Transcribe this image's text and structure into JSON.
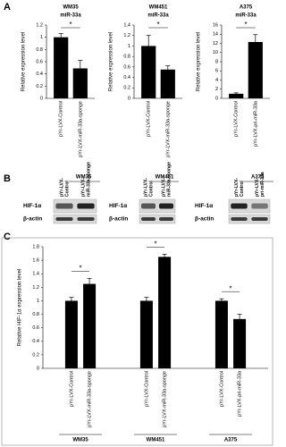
{
  "panel_labels": [
    "A",
    "B",
    "C"
  ],
  "chart_data": [
    {
      "type": "bar",
      "title": "WM35",
      "subtitle": "miR-33a",
      "y_label": "Relative expression level",
      "categories": [
        "pYr-LVX-Control",
        "pYr-LVX-miR-33a-sponge"
      ],
      "values": [
        1.0,
        0.49
      ],
      "errors": [
        0.06,
        0.13
      ],
      "color": "#000000",
      "ylim": [
        0,
        1.2
      ],
      "yticks": [
        0,
        0.2,
        0.4,
        0.6,
        0.8,
        1,
        1.2
      ],
      "annotations": [
        "*"
      ]
    },
    {
      "type": "bar",
      "title": "WM451",
      "subtitle": "miR-33a",
      "y_label": "Relative expression level",
      "categories": [
        "pYr-LVX-Control",
        "pYr-LVX-miR-33a-sponge"
      ],
      "values": [
        1.0,
        0.55
      ],
      "errors": [
        0.2,
        0.07
      ],
      "color": "#000000",
      "ylim": [
        0,
        1.4
      ],
      "yticks": [
        0,
        0.2,
        0.4,
        0.6,
        0.8,
        1,
        1.2,
        1.4
      ],
      "annotations": [
        "*"
      ]
    },
    {
      "type": "bar",
      "title": "A375",
      "subtitle": "miR-33a",
      "y_label": "Relative expression level",
      "categories": [
        "pYr-LVX-Control",
        "pYr-LVX-pri-miR-33a"
      ],
      "values": [
        1.0,
        12.3
      ],
      "errors": [
        0.2,
        1.6
      ],
      "color": "#000000",
      "ylim": [
        0,
        16
      ],
      "yticks": [
        0,
        2,
        4,
        6,
        8,
        10,
        12,
        14,
        16
      ],
      "annotations": [
        "*"
      ]
    },
    {
      "type": "bar",
      "y_label": "Relative HIF-1α expression level",
      "categories": [
        "pYr-LVX-Control",
        "pYr-LVX-miR-33a-sponge",
        "pYr-LVX-Control",
        "pYr-LVX-miR-33a-sponge",
        "pYr-LVX-Control",
        "pYr-LVX-pri-miR-33a"
      ],
      "groups": [
        "WM35",
        "WM451",
        "A375"
      ],
      "values": [
        1.0,
        1.25,
        1.0,
        1.65,
        1.0,
        0.73
      ],
      "errors": [
        0.05,
        0.08,
        0.05,
        0.04,
        0.03,
        0.07
      ],
      "color": "#000000",
      "ylim": [
        0,
        1.8
      ],
      "yticks": [
        0,
        0.2,
        0.4,
        0.6,
        0.8,
        1,
        1.2,
        1.4,
        1.6,
        1.8
      ],
      "annotations": [
        "*",
        "*",
        "*"
      ]
    }
  ],
  "blots": [
    {
      "cell_line": "WM35",
      "lanes": [
        [
          "pYr-LVX-",
          "Control"
        ],
        [
          "pYr-LVX-",
          "miR-33a-sponge"
        ]
      ],
      "rows": [
        "HIF-1α",
        "β-actin"
      ]
    },
    {
      "cell_line": "WM451",
      "lanes": [
        [
          "pYr-LVX-",
          "Control"
        ],
        [
          "pYr-LVX-",
          "miR-33a-sponge"
        ]
      ],
      "rows": [
        "HIF-1α",
        "β-actin"
      ]
    },
    {
      "cell_line": "A375",
      "lanes": [
        [
          "pYr-LVX-",
          "Control"
        ],
        [
          "pYr-LVX-",
          "pri-miR-33a"
        ]
      ],
      "rows": [
        "HIF-1α",
        "β-actin"
      ]
    }
  ]
}
